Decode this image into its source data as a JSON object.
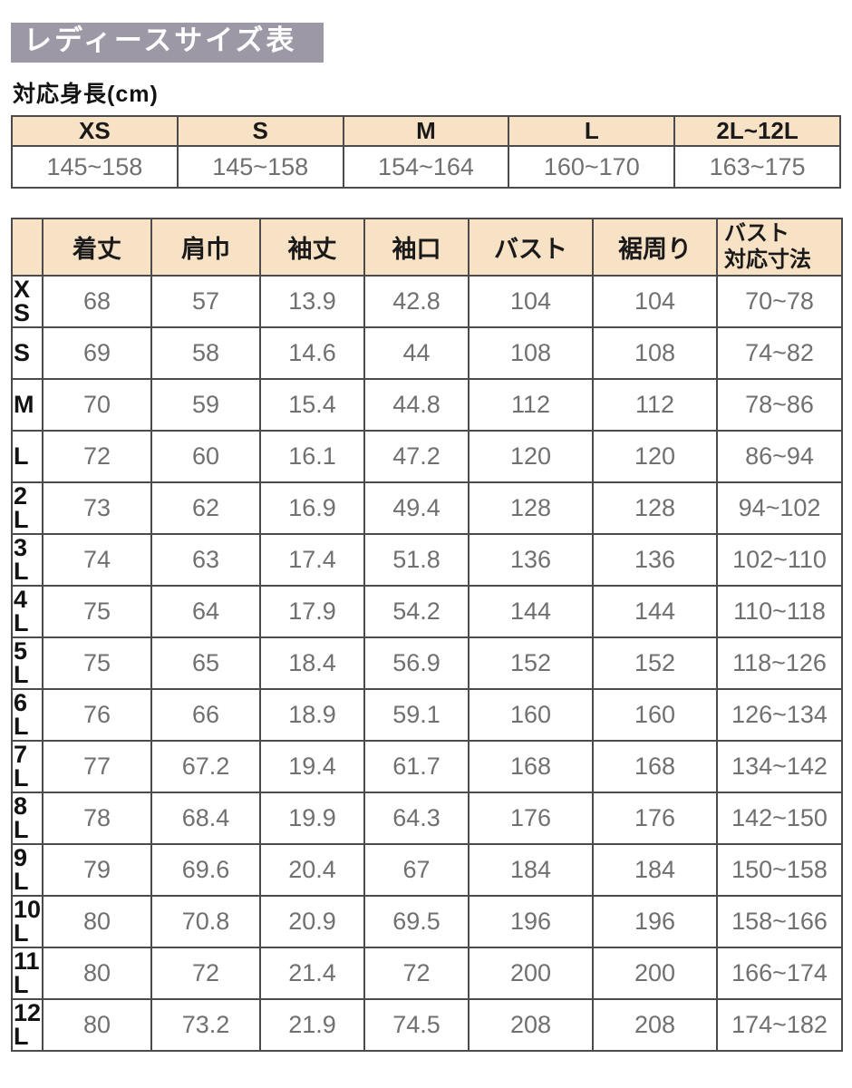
{
  "page": {
    "title": "レディースサイズ表",
    "subtitle": "対応身長(cm)"
  },
  "colors": {
    "title_bg": "#9c98a6",
    "title_text": "#ffffff",
    "header_bg": "#f8e2c6",
    "border": "#4b4b4b",
    "value_text": "#707070",
    "label_text": "#121212"
  },
  "height_table": {
    "columns": [
      "XS",
      "S",
      "M",
      "L",
      "2L~12L"
    ],
    "values": [
      "145~158",
      "145~158",
      "154~164",
      "160~170",
      "163~175"
    ]
  },
  "size_table": {
    "corner_label": "",
    "columns": [
      "着丈",
      "肩巾",
      "袖丈",
      "袖口",
      "バスト",
      "裾周り",
      "バスト\n対応寸法"
    ],
    "rows": [
      {
        "size": "XS",
        "size_display": "X\nS",
        "values": [
          "68",
          "57",
          "13.9",
          "42.8",
          "104",
          "104",
          "70~78"
        ]
      },
      {
        "size": "S",
        "size_display": "S",
        "values": [
          "69",
          "58",
          "14.6",
          "44",
          "108",
          "108",
          "74~82"
        ]
      },
      {
        "size": "M",
        "size_display": "M",
        "values": [
          "70",
          "59",
          "15.4",
          "44.8",
          "112",
          "112",
          "78~86"
        ]
      },
      {
        "size": "L",
        "size_display": "L",
        "values": [
          "72",
          "60",
          "16.1",
          "47.2",
          "120",
          "120",
          "86~94"
        ]
      },
      {
        "size": "2L",
        "size_display": "2\nL",
        "values": [
          "73",
          "62",
          "16.9",
          "49.4",
          "128",
          "128",
          "94~102"
        ]
      },
      {
        "size": "3L",
        "size_display": "3\nL",
        "values": [
          "74",
          "63",
          "17.4",
          "51.8",
          "136",
          "136",
          "102~110"
        ]
      },
      {
        "size": "4L",
        "size_display": "4\nL",
        "values": [
          "75",
          "64",
          "17.9",
          "54.2",
          "144",
          "144",
          "110~118"
        ]
      },
      {
        "size": "5L",
        "size_display": "5\nL",
        "values": [
          "75",
          "65",
          "18.4",
          "56.9",
          "152",
          "152",
          "118~126"
        ]
      },
      {
        "size": "6L",
        "size_display": "6\nL",
        "values": [
          "76",
          "66",
          "18.9",
          "59.1",
          "160",
          "160",
          "126~134"
        ]
      },
      {
        "size": "7L",
        "size_display": "7\nL",
        "values": [
          "77",
          "67.2",
          "19.4",
          "61.7",
          "168",
          "168",
          "134~142"
        ]
      },
      {
        "size": "8L",
        "size_display": "8\nL",
        "values": [
          "78",
          "68.4",
          "19.9",
          "64.3",
          "176",
          "176",
          "142~150"
        ]
      },
      {
        "size": "9L",
        "size_display": "9\nL",
        "values": [
          "79",
          "69.6",
          "20.4",
          "67",
          "184",
          "184",
          "150~158"
        ]
      },
      {
        "size": "10L",
        "size_display": "10\nL",
        "values": [
          "80",
          "70.8",
          "20.9",
          "69.5",
          "196",
          "196",
          "158~166"
        ]
      },
      {
        "size": "11L",
        "size_display": "11\nL",
        "values": [
          "80",
          "72",
          "21.4",
          "72",
          "200",
          "200",
          "166~174"
        ]
      },
      {
        "size": "12L",
        "size_display": "12\nL",
        "values": [
          "80",
          "73.2",
          "21.9",
          "74.5",
          "208",
          "208",
          "174~182"
        ]
      }
    ]
  }
}
